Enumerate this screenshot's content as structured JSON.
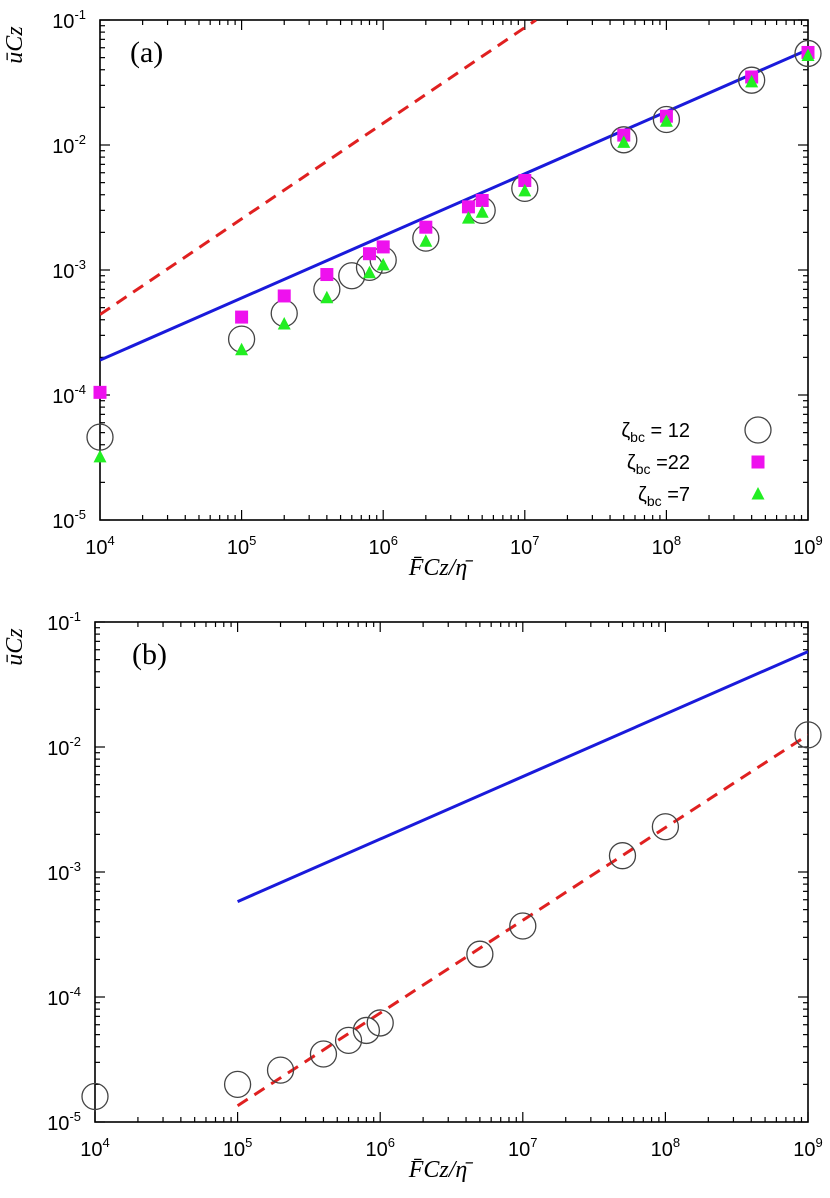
{
  "chart_data": [
    {
      "panel": "(a)",
      "type": "scatter",
      "xscale": "log",
      "yscale": "log",
      "xlim": [
        10000,
        1000000000
      ],
      "ylim": [
        1e-05,
        0.1
      ],
      "x_ticks": [
        {
          "base": "10",
          "exp": "4",
          "value": 10000
        },
        {
          "base": "10",
          "exp": "5",
          "value": 100000
        },
        {
          "base": "10",
          "exp": "6",
          "value": 1000000
        },
        {
          "base": "10",
          "exp": "7",
          "value": 10000000
        },
        {
          "base": "10",
          "exp": "8",
          "value": 100000000
        },
        {
          "base": "10",
          "exp": "9",
          "value": 1000000000
        }
      ],
      "y_ticks": [
        {
          "base": "10",
          "exp": "-5",
          "value": 1e-05
        },
        {
          "base": "10",
          "exp": "-4",
          "value": 0.0001
        },
        {
          "base": "10",
          "exp": "-3",
          "value": 0.001
        },
        {
          "base": "10",
          "exp": "-2",
          "value": 0.01
        },
        {
          "base": "10",
          "exp": "-1",
          "value": 0.1
        }
      ],
      "xlabel": "F̄Cz/η̄",
      "ylabel": "ūCz",
      "lines": [
        {
          "name": "blue-line",
          "color": "#1a1adb",
          "dash": "solid",
          "x": [
            10000,
            1000000000
          ],
          "y": [
            0.00019,
            0.058
          ]
        },
        {
          "name": "red-dashed-line",
          "color": "#e02020",
          "dash": "dashed",
          "x": [
            10000,
            12000000
          ],
          "y": [
            0.00044,
            0.1
          ]
        }
      ],
      "series": [
        {
          "name": "zeta12",
          "legend_symbol": "ζ",
          "legend_sub": "bc",
          "legend_tail": " = 12",
          "marker": "open-circle",
          "color": "#444444",
          "x": [
            10000,
            100000,
            200000,
            400000,
            600000,
            800000,
            1000000,
            2000000,
            5000000,
            10000000,
            50000000,
            100000000,
            400000000,
            1000000000
          ],
          "y": [
            4.6e-05,
            0.00028,
            0.00045,
            0.0007,
            0.0009,
            0.00105,
            0.0012,
            0.0018,
            0.003,
            0.0045,
            0.011,
            0.016,
            0.033,
            0.054
          ]
        },
        {
          "name": "zeta22",
          "legend_symbol": "ζ",
          "legend_sub": "bc",
          "legend_tail": " =22",
          "marker": "square",
          "color": "#ee11ee",
          "x": [
            10000,
            100000,
            200000,
            400000,
            800000,
            1000000,
            2000000,
            4000000,
            5000000,
            10000000,
            50000000,
            100000000,
            400000000,
            1000000000
          ],
          "y": [
            0.000105,
            0.00042,
            0.00062,
            0.00092,
            0.00135,
            0.00153,
            0.0022,
            0.0032,
            0.0036,
            0.0052,
            0.012,
            0.017,
            0.035,
            0.055
          ]
        },
        {
          "name": "zeta7",
          "legend_symbol": "ζ",
          "legend_sub": "bc",
          "legend_tail": " =7",
          "marker": "triangle",
          "color": "#22ee22",
          "x": [
            10000,
            100000,
            200000,
            400000,
            800000,
            1000000,
            2000000,
            4000000,
            5000000,
            10000000,
            50000000,
            100000000,
            400000000,
            1000000000
          ],
          "y": [
            3.2e-05,
            0.00023,
            0.00037,
            0.0006,
            0.00095,
            0.0011,
            0.0017,
            0.0026,
            0.0029,
            0.0043,
            0.0105,
            0.0155,
            0.032,
            0.052
          ]
        }
      ],
      "legend_position": "bottom-right"
    },
    {
      "panel": "(b)",
      "type": "scatter",
      "xscale": "log",
      "yscale": "log",
      "xlim": [
        10000,
        1000000000
      ],
      "ylim": [
        1e-05,
        0.1
      ],
      "x_ticks": [
        {
          "base": "10",
          "exp": "4",
          "value": 10000
        },
        {
          "base": "10",
          "exp": "5",
          "value": 100000
        },
        {
          "base": "10",
          "exp": "6",
          "value": 1000000
        },
        {
          "base": "10",
          "exp": "7",
          "value": 10000000
        },
        {
          "base": "10",
          "exp": "8",
          "value": 100000000
        },
        {
          "base": "10",
          "exp": "9",
          "value": 1000000000
        }
      ],
      "y_ticks": [
        {
          "base": "10",
          "exp": "-5",
          "value": 1e-05
        },
        {
          "base": "10",
          "exp": "-4",
          "value": 0.0001
        },
        {
          "base": "10",
          "exp": "-3",
          "value": 0.001
        },
        {
          "base": "10",
          "exp": "-2",
          "value": 0.01
        },
        {
          "base": "10",
          "exp": "-1",
          "value": 0.1
        }
      ],
      "xlabel": "F̄Cz/η̄",
      "ylabel": "ūCz",
      "lines": [
        {
          "name": "blue-line",
          "color": "#1a1adb",
          "dash": "solid",
          "x": [
            100000,
            1000000000
          ],
          "y": [
            0.00058,
            0.058
          ]
        },
        {
          "name": "red-dashed-line",
          "color": "#e02020",
          "dash": "dashed",
          "x": [
            100000,
            1000000000
          ],
          "y": [
            1.35e-05,
            0.0125
          ]
        }
      ],
      "series": [
        {
          "name": "zeta12",
          "marker": "open-circle",
          "color": "#444444",
          "x": [
            10000,
            100000,
            200000,
            400000,
            600000,
            800000,
            1000000,
            5000000,
            10000000,
            50000000,
            100000000,
            1000000000
          ],
          "y": [
            1.6e-05,
            2e-05,
            2.6e-05,
            3.5e-05,
            4.5e-05,
            5.4e-05,
            6.2e-05,
            0.00022,
            0.00037,
            0.00135,
            0.0023,
            0.0125
          ]
        }
      ]
    }
  ]
}
